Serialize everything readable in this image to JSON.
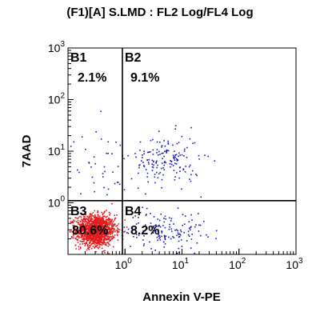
{
  "chart_data": {
    "type": "scatter",
    "title": "(F1)[A] S.LMD : FL2 Log/FL4 Log",
    "xlabel": "Annexin V-PE",
    "ylabel": "7AAD",
    "x_scale": "log",
    "y_scale": "log",
    "xlim": [
      0.1,
      1000
    ],
    "ylim": [
      0.1,
      1000
    ],
    "x_ticks": [
      {
        "value": 1,
        "base": "10",
        "exp": "0"
      },
      {
        "value": 10,
        "base": "10",
        "exp": "1"
      },
      {
        "value": 100,
        "base": "10",
        "exp": "2"
      },
      {
        "value": 1000,
        "base": "10",
        "exp": "3"
      }
    ],
    "y_ticks": [
      {
        "value": 1,
        "base": "10",
        "exp": "0"
      },
      {
        "value": 10,
        "base": "10",
        "exp": "1"
      },
      {
        "value": 100,
        "base": "10",
        "exp": "2"
      },
      {
        "value": 1000,
        "base": "10",
        "exp": "3"
      }
    ],
    "gates": {
      "x": 0.9,
      "y": 1.1
    },
    "quadrants": [
      {
        "name": "B1",
        "percent": "2.1%",
        "position": "top-left"
      },
      {
        "name": "B2",
        "percent": "9.1%",
        "position": "top-right"
      },
      {
        "name": "B3",
        "percent": "80.6%",
        "position": "bottom-left"
      },
      {
        "name": "B4",
        "percent": "8.2%",
        "position": "bottom-right"
      }
    ],
    "populations": [
      {
        "quadrant": "B3",
        "color": "#e61a1a",
        "center": [
          0.3,
          0.3
        ],
        "spread_log": [
          0.17,
          0.15
        ]
      },
      {
        "quadrant": "B2",
        "color": "#1a1ab4",
        "center": [
          5,
          7
        ],
        "spread_log": [
          0.3,
          0.25
        ]
      },
      {
        "quadrant": "B4",
        "color": "#1a1ab4",
        "center": [
          5,
          0.3
        ],
        "spread_log": [
          0.35,
          0.18
        ]
      },
      {
        "quadrant": "B1",
        "color": "#1a1ab4",
        "center": [
          0.35,
          6
        ],
        "spread_log": [
          0.25,
          0.35
        ]
      }
    ],
    "grid": false,
    "colors": {
      "dense": "#e61a1a",
      "sparse": "#1a1ab4",
      "quadrant_lines": "#000000"
    }
  }
}
